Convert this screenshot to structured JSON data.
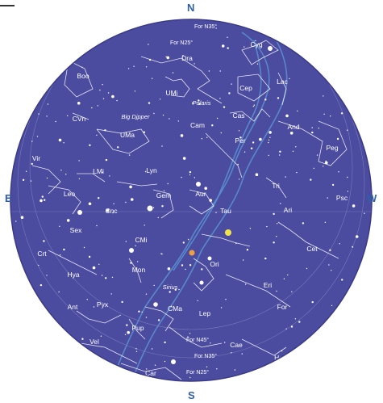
{
  "directions": {
    "north": "N",
    "south": "S",
    "east": "E",
    "west": "W"
  },
  "colors": {
    "sky": "#4b4ba0",
    "milky_way": "#5a8fd0",
    "lines": "#ffffff",
    "labels": "#ffffff",
    "direction_text": "#2f5fa8"
  },
  "latitude_labels": {
    "top": [
      "For N45°",
      "For N35°",
      "For N25°"
    ],
    "bottom": [
      "For N45°",
      "For N35°",
      "For N25°"
    ]
  },
  "constellations": [
    "Cyg",
    "Dra",
    "Boo",
    "Cep",
    "Lac",
    "UMi",
    "Cas",
    "CVn",
    "UMa",
    "Cam",
    "And",
    "Peg",
    "Per",
    "Vir",
    "LMi",
    "Lyn",
    "Tri",
    "Leo",
    "Gem",
    "Aur",
    "Psc",
    "Ari",
    "Cnc",
    "Tau",
    "Sex",
    "CMi",
    "Crt",
    "Cet",
    "Ori",
    "Hya",
    "Mon",
    "Eri",
    "Ant",
    "Pyx",
    "CMa",
    "For",
    "Lep",
    "Pup",
    "Vel",
    "Cae",
    "Hor",
    "Car"
  ],
  "star_names": [
    "Big Dipper",
    "Polaris",
    "Sirius"
  ]
}
